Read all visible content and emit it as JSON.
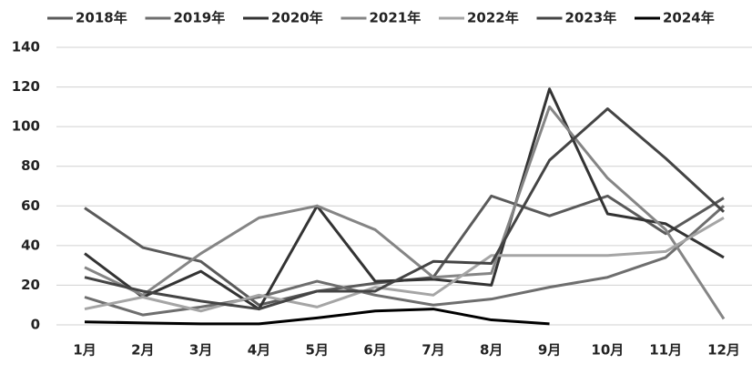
{
  "chart_data": {
    "type": "line",
    "categories": [
      "1月",
      "2月",
      "3月",
      "4月",
      "5月",
      "6月",
      "7月",
      "8月",
      "9月",
      "10月",
      "11月",
      "12月"
    ],
    "series": [
      {
        "name": "2018年",
        "color": "#5a5a5a",
        "values": [
          59,
          39,
          32,
          10,
          17,
          21,
          24,
          65,
          55,
          65,
          46,
          64
        ]
      },
      {
        "name": "2019年",
        "color": "#6e6e6e",
        "values": [
          14,
          5,
          9,
          14,
          22,
          15,
          10,
          13,
          19,
          24,
          34,
          60
        ]
      },
      {
        "name": "2020年",
        "color": "#333333",
        "values": [
          36,
          14,
          27,
          8,
          60,
          22,
          23,
          20,
          119,
          56,
          51,
          34
        ]
      },
      {
        "name": "2021年",
        "color": "#858585",
        "values": [
          29,
          15,
          36,
          54,
          60,
          48,
          24,
          26,
          110,
          74,
          48,
          3
        ]
      },
      {
        "name": "2022年",
        "color": "#a5a5a5",
        "values": [
          8,
          14,
          7,
          15,
          9,
          19,
          15,
          35,
          35,
          35,
          37,
          54
        ]
      },
      {
        "name": "2023年",
        "color": "#444444",
        "values": [
          24,
          17,
          12,
          8,
          17,
          17,
          32,
          31,
          83,
          109,
          84,
          57
        ]
      },
      {
        "name": "2024年",
        "color": "#000000",
        "values": [
          1.5,
          1,
          0.5,
          0.5,
          3.5,
          7,
          8,
          2.5,
          0.5,
          null,
          null,
          null
        ]
      }
    ],
    "ylim": [
      0,
      140
    ],
    "yticks": [
      0,
      20,
      40,
      60,
      80,
      100,
      120,
      140
    ],
    "grid": true
  }
}
